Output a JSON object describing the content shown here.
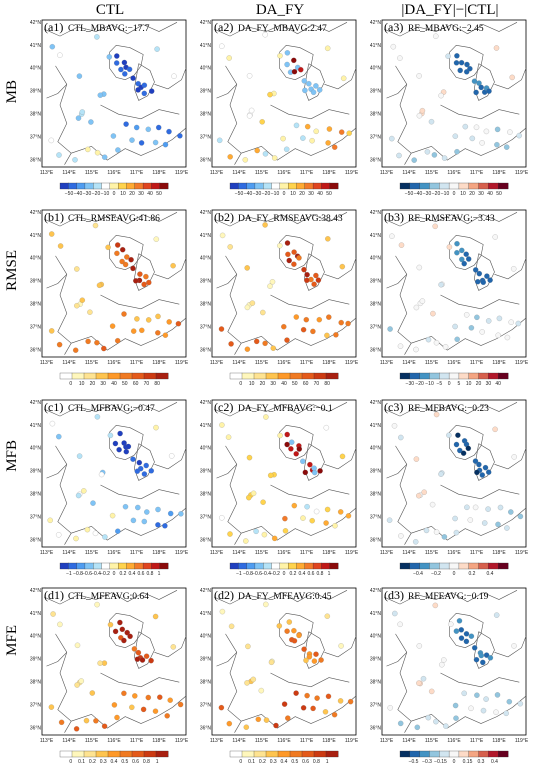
{
  "columns": [
    "CTL",
    "DA_FY",
    "|DA_FY|−|CTL|"
  ],
  "rows": [
    "MB",
    "RMSE",
    "MFB",
    "MFE"
  ],
  "lat_labels": [
    "42°N",
    "41°N",
    "40°N",
    "39°N",
    "38°N",
    "37°N",
    "36°N"
  ],
  "lon_labels": [
    "113°E",
    "114°E",
    "115°E",
    "116°E",
    "117°E",
    "118°E",
    "119°E"
  ],
  "palettes": {
    "diverging_mb": [
      "#1f3fbf",
      "#2f6be0",
      "#4f9cf0",
      "#7fc3f5",
      "#b5e3f7",
      "#ffffff",
      "#fff3a8",
      "#ffd34d",
      "#ffaa33",
      "#f27a2a",
      "#e04420",
      "#c01818",
      "#8a0a0a"
    ],
    "sequential": [
      "#ffffff",
      "#fff7bc",
      "#fee391",
      "#fec44f",
      "#fe9929",
      "#f07a22",
      "#e45a1a",
      "#cc3a12",
      "#a82010"
    ],
    "rdbu": [
      "#053061",
      "#2166ac",
      "#4393c3",
      "#92c5de",
      "#d1e5f0",
      "#f7f7f7",
      "#fddbc7",
      "#f4a582",
      "#d6604d",
      "#b2182b",
      "#67001f"
    ]
  },
  "panels": [
    {
      "tag": "(a1)",
      "label": "CTL_MBAVG:−17.7",
      "palette": "diverging_mb",
      "ticks": [
        "−50",
        "−40",
        "−30",
        "−20",
        "−10",
        "0",
        "10",
        "20",
        "30",
        "40",
        "50"
      ],
      "mode": "ctl_mb"
    },
    {
      "tag": "(a2)",
      "label": "DA_FY_MBAVG:2.47",
      "palette": "diverging_mb",
      "ticks": [
        "−50",
        "−40",
        "−30",
        "−20",
        "−10",
        "0",
        "10",
        "20",
        "30",
        "40",
        "50"
      ],
      "mode": "da_mb"
    },
    {
      "tag": "(a3)",
      "label": "RE_MBAVG:−2.45",
      "palette": "rdbu",
      "ticks": [
        "−50",
        "−40",
        "−30",
        "−20",
        "−10",
        "0",
        "10",
        "20",
        "30",
        "40",
        "50"
      ],
      "mode": "re"
    },
    {
      "tag": "(b1)",
      "label": "CTL_RMSEAVG:41.86",
      "palette": "sequential",
      "ticks": [
        "0",
        "10",
        "20",
        "30",
        "40",
        "50",
        "60",
        "70",
        "80"
      ],
      "mode": "seq_hi"
    },
    {
      "tag": "(b2)",
      "label": "DA_FY_RMSEAVG:38.43",
      "palette": "sequential",
      "ticks": [
        "0",
        "10",
        "20",
        "30",
        "40",
        "50",
        "60",
        "70",
        "80"
      ],
      "mode": "seq_hi"
    },
    {
      "tag": "(b3)",
      "label": "RE_RMSEAVG:−3.43",
      "palette": "rdbu",
      "ticks": [
        "−30",
        "−20",
        "−10",
        "−5",
        "0",
        "5",
        "10",
        "20",
        "30",
        "40"
      ],
      "mode": "re"
    },
    {
      "tag": "(c1)",
      "label": "CTL_MFBAVG:−0.47",
      "palette": "diverging_mb",
      "ticks": [
        "−1",
        "−0.8",
        "−0.6",
        "−0.4",
        "−0.2",
        "0",
        "0.2",
        "0.4",
        "0.6",
        "0.8",
        "1"
      ],
      "mode": "ctl_mb"
    },
    {
      "tag": "(c2)",
      "label": "DA_FY_MFBAVG:−0.1",
      "palette": "diverging_mb",
      "ticks": [
        "−1",
        "−0.8",
        "−0.6",
        "−0.4",
        "−0.2",
        "0",
        "0.2",
        "0.4",
        "0.6",
        "0.8",
        "1"
      ],
      "mode": "da_mb"
    },
    {
      "tag": "(c3)",
      "label": "RE_MFBAVG:−0.23",
      "palette": "rdbu",
      "ticks": [
        "−0.4",
        "−0.2",
        "0",
        "0.2",
        "0.4"
      ],
      "mode": "re_strong"
    },
    {
      "tag": "(d1)",
      "label": "CTL_MFEAVG:0.64",
      "palette": "sequential",
      "ticks": [
        "0",
        "0.1",
        "0.2",
        "0.3",
        "0.4",
        "0.5",
        "0.6",
        "0.8",
        "1"
      ],
      "mode": "seq_hi"
    },
    {
      "tag": "(d2)",
      "label": "DA_FY_MFEAVG:0.45",
      "palette": "sequential",
      "ticks": [
        "0",
        "0.1",
        "0.2",
        "0.3",
        "0.4",
        "0.5",
        "0.6",
        "0.8",
        "1"
      ],
      "mode": "seq_mid"
    },
    {
      "tag": "(d3)",
      "label": "RE_MFEAVG:−0.19",
      "palette": "rdbu",
      "ticks": [
        "−0.5",
        "−0.3",
        "−0.15",
        "0",
        "0.15",
        "0.3",
        "0.4"
      ],
      "mode": "re"
    }
  ]
}
